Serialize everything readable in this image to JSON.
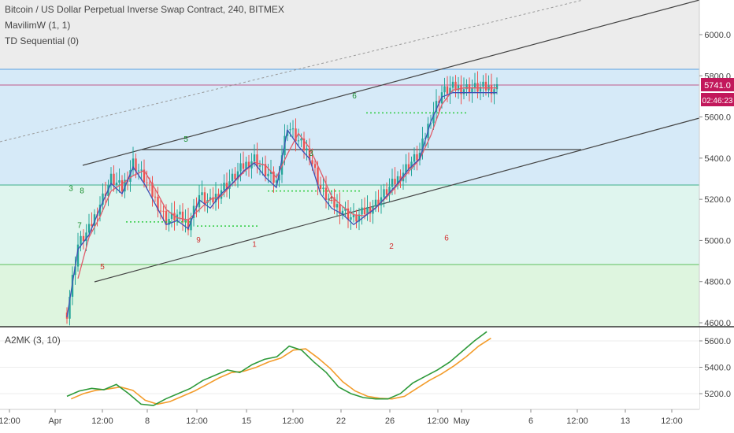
{
  "header": {
    "title": "Bitcoin / US Dollar Perpetual Inverse Swap Contract, 240, BITMEX",
    "indicator_1": "MavilimW (1, 1)",
    "indicator_2": "TD Sequential (0)"
  },
  "oscillator": {
    "label": "A2MK (3, 10)"
  },
  "price_badges": {
    "last_price": "5741.0",
    "countdown": "02:46:23",
    "last_price_color": "#c2185b"
  },
  "colors": {
    "up_candle": "#26a69a",
    "down_candle": "#ef5350",
    "mavilim": "#3f51b5",
    "ma_red": "#e05c6a",
    "td_setup": "#1b8f2f",
    "td_down": "#d32f2f",
    "fast_line": "#2e9a3a",
    "slow_line": "#f39c2b"
  },
  "chart_data": [
    {
      "type": "line",
      "title": "Bitcoin / US Dollar Perpetual Inverse Swap Contract, 240, BITMEX",
      "y_ticks": [
        "4600.0",
        "4800.0",
        "5000.0",
        "5200.0",
        "5400.0",
        "5600.0",
        "5800.0",
        "6000.0"
      ],
      "ylim": [
        4590,
        6200
      ],
      "x_ticks": [
        "12:00",
        "Apr",
        "12:00",
        "8",
        "12:00",
        "15",
        "12:00",
        "22",
        "26",
        "12:00",
        "May",
        "6",
        "12:00",
        "13",
        "12:00"
      ],
      "series": [
        {
          "x": [
            0,
            4,
            8,
            12,
            16,
            20,
            24,
            28,
            32,
            36,
            40,
            44,
            48,
            52,
            56,
            60,
            64,
            68,
            72,
            76,
            80,
            84,
            88,
            92,
            96,
            100,
            104,
            108,
            112,
            116,
            120,
            124,
            128,
            132,
            136,
            140,
            144,
            148,
            152,
            156
          ],
          "values": [
            4650,
            4980,
            5050,
            5180,
            5300,
            5250,
            5380,
            5300,
            5200,
            5100,
            5120,
            5080,
            5220,
            5180,
            5250,
            5300,
            5360,
            5400,
            5330,
            5280,
            5560,
            5480,
            5420,
            5250,
            5180,
            5150,
            5100,
            5140,
            5180,
            5240,
            5300,
            5370,
            5420,
            5600,
            5720,
            5741,
            5741,
            5741,
            5741,
            5741
          ],
          "name": "MavilimW (1, 1)"
        }
      ],
      "annotations": [
        "3",
        "8",
        "7",
        "5",
        "6",
        "3",
        "5",
        "9",
        "2",
        "1",
        "4",
        "6"
      ],
      "legend": "top-left",
      "grid": true
    },
    {
      "type": "line",
      "title": "A2MK (3, 10)",
      "y_ticks": [
        "5200.0",
        "5400.0",
        "5600.0"
      ],
      "ylim": [
        5120,
        5680
      ],
      "series": [
        {
          "x": [
            0,
            4,
            8,
            12,
            16,
            20,
            24,
            28,
            32,
            36,
            40,
            44,
            48,
            52,
            56,
            60,
            64,
            68,
            72,
            76,
            80,
            84,
            88,
            92,
            96,
            100,
            104,
            108,
            112,
            116,
            120,
            124,
            128,
            132,
            136
          ],
          "values": [
            5180,
            5220,
            5240,
            5230,
            5270,
            5200,
            5120,
            5110,
            5160,
            5200,
            5240,
            5300,
            5340,
            5380,
            5360,
            5420,
            5460,
            5480,
            5560,
            5530,
            5440,
            5360,
            5250,
            5200,
            5170,
            5160,
            5160,
            5200,
            5280,
            5330,
            5380,
            5440,
            5520,
            5600,
            5670
          ]
        },
        {
          "x": [
            0,
            4,
            8,
            12,
            16,
            20,
            24,
            28,
            32,
            36,
            40,
            44,
            48,
            52,
            56,
            60,
            64,
            68,
            72,
            76,
            80,
            84,
            88,
            92,
            96,
            100,
            104,
            108,
            112,
            116,
            120,
            124,
            128,
            132,
            136
          ],
          "values": [
            5160,
            5200,
            5225,
            5235,
            5250,
            5225,
            5150,
            5120,
            5140,
            5180,
            5220,
            5270,
            5320,
            5360,
            5370,
            5400,
            5440,
            5470,
            5530,
            5540,
            5470,
            5390,
            5290,
            5220,
            5180,
            5165,
            5160,
            5180,
            5240,
            5300,
            5350,
            5410,
            5480,
            5560,
            5620
          ]
        }
      ],
      "legend": "top-left",
      "grid": true
    }
  ]
}
